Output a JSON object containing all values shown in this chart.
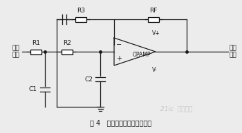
{
  "title": "图 4   低通滤波部分电路原理图",
  "bg_color": "#ececec",
  "line_color": "#1a1a1a",
  "signal_in": "信号\n输入",
  "signal_out": "信号\n输出",
  "labels": {
    "R1": "R1",
    "R2": "R2",
    "R3": "R3",
    "RF": "RF",
    "C1": "C1",
    "C2": "C2",
    "opamp": "OPAMP",
    "Vplus": "V+",
    "Vminus": "V-"
  },
  "font_size_label": 6.5,
  "font_size_title": 7,
  "font_size_component": 6.5
}
